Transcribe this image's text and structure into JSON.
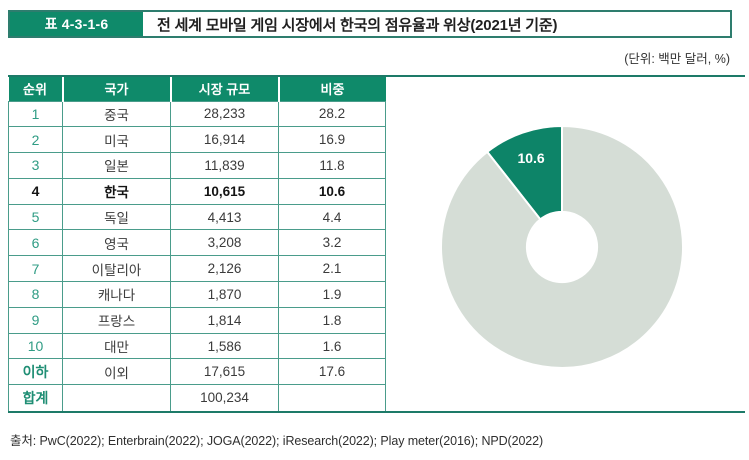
{
  "header": {
    "table_label": "표 4-3-1-6",
    "title": "전 세계 모바일 게임 시장에서 한국의 점유율과 위상(2021년 기준)",
    "unit_note": "(단위: 백만 달러, %)"
  },
  "table": {
    "columns": [
      "순위",
      "국가",
      "시장 규모",
      "비중"
    ],
    "rows": [
      {
        "rank": "1",
        "country": "중국",
        "market_size": "28,233",
        "share": "28.2",
        "style": "normal"
      },
      {
        "rank": "2",
        "country": "미국",
        "market_size": "16,914",
        "share": "16.9",
        "style": "normal"
      },
      {
        "rank": "3",
        "country": "일본",
        "market_size": "11,839",
        "share": "11.8",
        "style": "normal"
      },
      {
        "rank": "4",
        "country": "한국",
        "market_size": "10,615",
        "share": "10.6",
        "style": "highlight"
      },
      {
        "rank": "5",
        "country": "독일",
        "market_size": "4,413",
        "share": "4.4",
        "style": "normal"
      },
      {
        "rank": "6",
        "country": "영국",
        "market_size": "3,208",
        "share": "3.2",
        "style": "normal"
      },
      {
        "rank": "7",
        "country": "이탈리아",
        "market_size": "2,126",
        "share": "2.1",
        "style": "normal"
      },
      {
        "rank": "8",
        "country": "캐나다",
        "market_size": "1,870",
        "share": "1.9",
        "style": "normal"
      },
      {
        "rank": "9",
        "country": "프랑스",
        "market_size": "1,814",
        "share": "1.8",
        "style": "normal"
      },
      {
        "rank": "10",
        "country": "대만",
        "market_size": "1,586",
        "share": "1.6",
        "style": "normal"
      },
      {
        "rank": "이하",
        "country": "이외",
        "market_size": "17,615",
        "share": "17.6",
        "style": "summary"
      },
      {
        "rank": "합계",
        "country": "",
        "market_size": "100,234",
        "share": "",
        "style": "summary"
      }
    ]
  },
  "chart_data": {
    "type": "pie",
    "donut": true,
    "title": "",
    "slices": [
      {
        "label": "한국",
        "value": 10.6,
        "color": "#0d8468",
        "data_label": "10.6"
      },
      {
        "label": "이외",
        "value": 89.4,
        "color": "#d5ddd6",
        "data_label": ""
      }
    ],
    "hole_ratio": 0.29,
    "first_slice_ends_at_top": true,
    "data_label_color": "#ffffff",
    "slice_divider_color": "#ffffff"
  },
  "footer": {
    "source": "출처: PwC(2022); Enterbrain(2022); JOGA(2022); iResearch(2022); Play meter(2016); NPD(2022)"
  },
  "colors": {
    "accent_green": "#0f8a6a",
    "highlight_slice": "#0d8468",
    "rest_slice": "#d5ddd6",
    "table_border": "#4a9c8b",
    "rule": "#1d7a68",
    "rank_teal": "#2f9c84",
    "text_dark": "#3b3b3b"
  }
}
